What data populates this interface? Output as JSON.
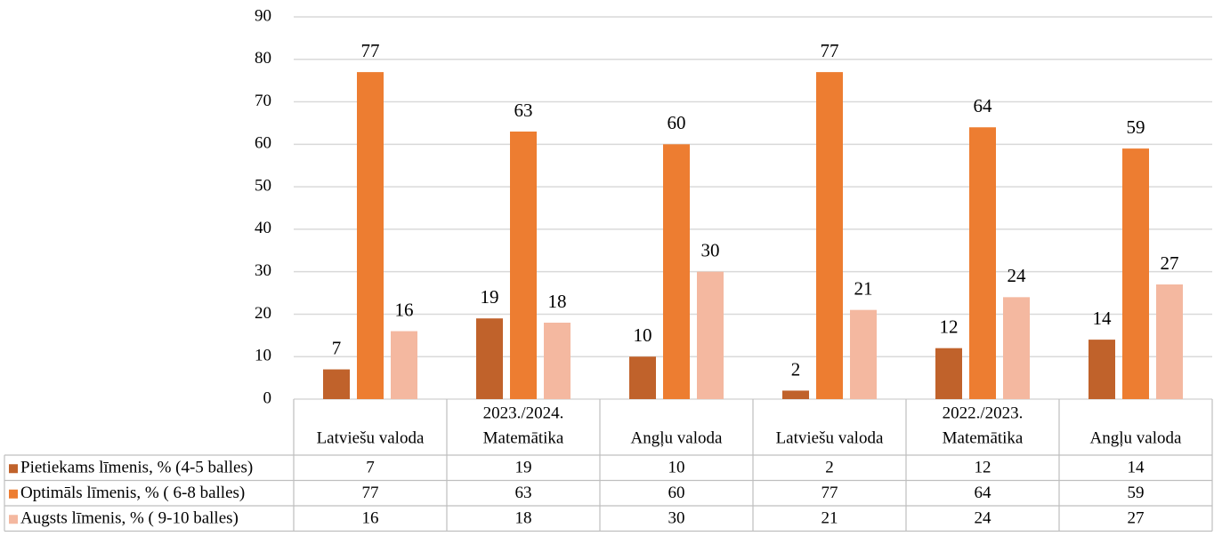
{
  "chart_data": {
    "type": "bar",
    "category_groups": [
      "2023./2024.",
      "2022./2023."
    ],
    "categories": [
      "Latviešu valoda",
      "Matemātika",
      "Angļu valoda",
      "Latviešu valoda",
      "Matemātika",
      "Angļu valoda"
    ],
    "series": [
      {
        "name": "Pietiekams līmenis, % (4-5 balles)",
        "color": "#c0622b",
        "values": [
          7,
          19,
          10,
          2,
          12,
          14
        ]
      },
      {
        "name": "Optimāls līmenis, % ( 6-8 balles)",
        "color": "#ed7d31",
        "values": [
          77,
          63,
          60,
          77,
          64,
          59
        ]
      },
      {
        "name": "Augsts līmenis, % ( 9-10 balles)",
        "color": "#f4b8a0",
        "values": [
          16,
          18,
          30,
          21,
          24,
          27
        ]
      }
    ],
    "ylim": [
      0,
      90
    ],
    "yticks": [
      0,
      10,
      20,
      30,
      40,
      50,
      60,
      70,
      80,
      90
    ],
    "grid": true,
    "data_table": true
  }
}
